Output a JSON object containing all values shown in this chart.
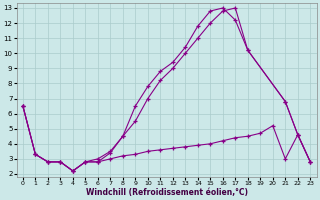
{
  "xlabel": "Windchill (Refroidissement éolien,°C)",
  "bg_color": "#cce8e8",
  "grid_color": "#aacccc",
  "line_color": "#880088",
  "xlim_min": -0.5,
  "xlim_max": 23.5,
  "ylim_min": 1.8,
  "ylim_max": 13.3,
  "xticks": [
    0,
    1,
    2,
    3,
    4,
    5,
    6,
    7,
    8,
    9,
    10,
    11,
    12,
    13,
    14,
    15,
    16,
    17,
    18,
    19,
    20,
    21,
    22,
    23
  ],
  "yticks": [
    2,
    3,
    4,
    5,
    6,
    7,
    8,
    9,
    10,
    11,
    12,
    13
  ],
  "line1_x": [
    0,
    1,
    2,
    3,
    4,
    5,
    6,
    7,
    8,
    9,
    10,
    11,
    12,
    13,
    14,
    15,
    16,
    17,
    18,
    21,
    22,
    23
  ],
  "line1_y": [
    6.5,
    3.3,
    2.8,
    2.8,
    2.2,
    2.8,
    3.0,
    3.5,
    4.5,
    6.5,
    7.8,
    8.8,
    9.4,
    10.4,
    11.8,
    12.8,
    13.0,
    12.2,
    10.2,
    6.8,
    4.6,
    2.8
  ],
  "line2_x": [
    0,
    1,
    2,
    3,
    4,
    5,
    6,
    7,
    8,
    9,
    10,
    11,
    12,
    13,
    14,
    15,
    16,
    17,
    18,
    21,
    22,
    23
  ],
  "line2_y": [
    6.5,
    3.3,
    2.8,
    2.8,
    2.2,
    2.8,
    2.8,
    3.4,
    4.5,
    5.5,
    7.0,
    8.2,
    9.0,
    10.0,
    11.0,
    12.0,
    12.8,
    13.0,
    10.2,
    6.8,
    4.6,
    2.8
  ],
  "line3_x": [
    0,
    1,
    2,
    3,
    4,
    5,
    6,
    7,
    8,
    9,
    10,
    11,
    12,
    13,
    14,
    15,
    16,
    17,
    18,
    19,
    20,
    21,
    22,
    23
  ],
  "line3_y": [
    6.5,
    3.3,
    2.8,
    2.8,
    2.2,
    2.8,
    2.8,
    3.0,
    3.2,
    3.3,
    3.5,
    3.6,
    3.7,
    3.8,
    3.9,
    4.0,
    4.2,
    4.4,
    4.5,
    4.7,
    5.2,
    3.0,
    4.6,
    2.8
  ]
}
